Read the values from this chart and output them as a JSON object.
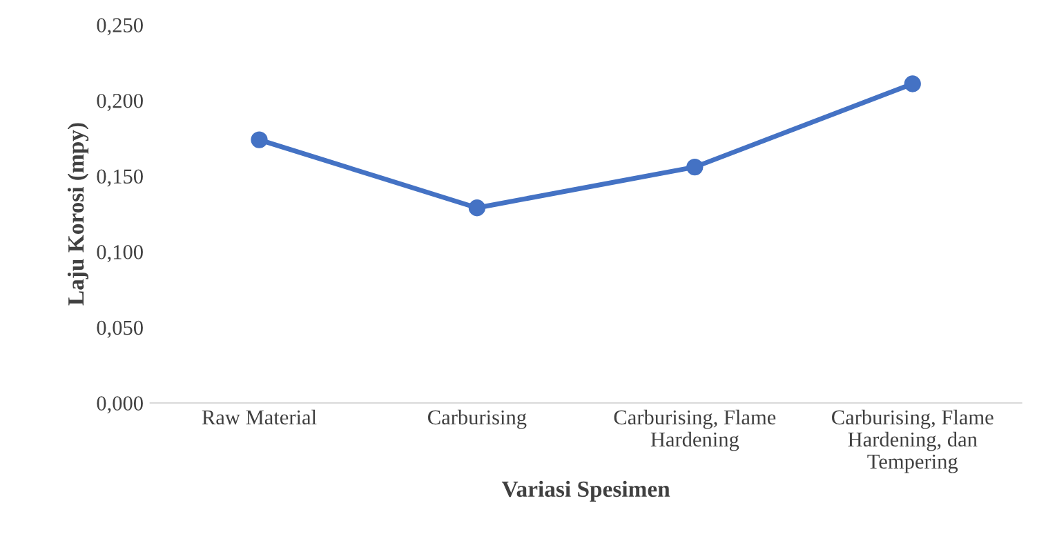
{
  "chart_data": {
    "type": "line",
    "xlabel": "Variasi Spesimen",
    "ylabel": "Laju Korosi (mpy)",
    "categories": [
      "Raw Material",
      "Carburising",
      "Carburising, Flame\nHardening",
      "Carburising, Flame\nHardening, dan\nTempering"
    ],
    "series": [
      {
        "color": "#4472c4",
        "values": [
          0.174,
          0.129,
          0.156,
          0.211
        ]
      }
    ],
    "ylim": [
      0,
      0.25
    ],
    "yticks": [
      {
        "value": 0,
        "label": "0,000"
      },
      {
        "value": 0.05,
        "label": "0,050"
      },
      {
        "value": 0.1,
        "label": "0,100"
      },
      {
        "value": 0.15,
        "label": "0,150"
      },
      {
        "value": 0.2,
        "label": "0,200"
      },
      {
        "value": 0.25,
        "label": "0,250"
      }
    ],
    "marker": "circle",
    "line_style": "solid",
    "grid": false
  }
}
